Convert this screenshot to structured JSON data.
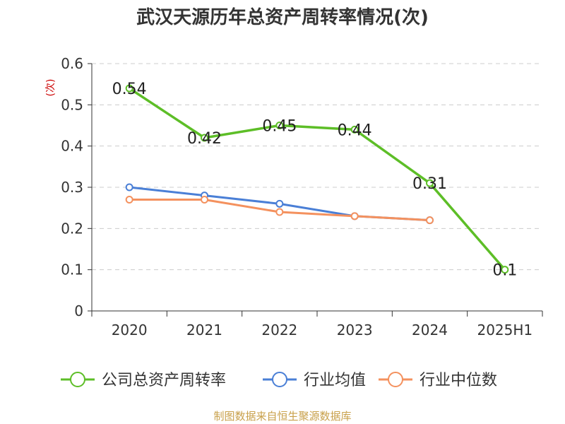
{
  "chart_data": {
    "type": "line",
    "title": "武汉天源历年总资产周转率情况(次)",
    "ylabel": "(次)",
    "xlabel": "",
    "categories": [
      "2020",
      "2021",
      "2022",
      "2023",
      "2024",
      "2025H1"
    ],
    "ylim": [
      0,
      0.6
    ],
    "yticks": [
      0,
      0.1,
      0.2,
      0.3,
      0.4,
      0.5,
      0.6
    ],
    "ytick_labels": [
      "0",
      "0.1",
      "0.2",
      "0.3",
      "0.4",
      "0.5",
      "0.6"
    ],
    "grid": true,
    "legend_position": "bottom",
    "series": [
      {
        "name": "公司总资产周转率",
        "color": "#5dbe27",
        "values": [
          0.54,
          0.42,
          0.45,
          0.44,
          0.31,
          0.1
        ],
        "labels": [
          "0.54",
          "0.42",
          "0.45",
          "0.44",
          "0.31",
          "0.1"
        ]
      },
      {
        "name": "行业均值",
        "color": "#4a7fd6",
        "values": [
          0.3,
          0.28,
          0.26,
          0.23,
          0.22,
          null
        ]
      },
      {
        "name": "行业中位数",
        "color": "#f4915e",
        "values": [
          0.27,
          0.27,
          0.24,
          0.23,
          0.22,
          null
        ]
      }
    ]
  },
  "source_note": "制图数据来自恒生聚源数据库"
}
